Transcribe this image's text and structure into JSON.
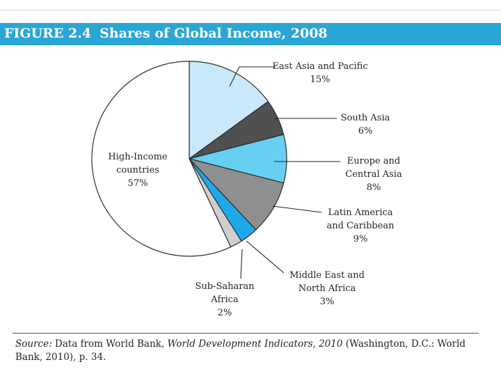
{
  "figure": {
    "number": "FIGURE 2.4",
    "title": "Shares of Global Income, 2008"
  },
  "chart_data": {
    "type": "pie",
    "title": "Shares of Global Income, 2008",
    "unit": "%",
    "slices": [
      {
        "key": "east-asia-pacific",
        "label_lines": [
          "East Asia and Pacific"
        ],
        "pct_label": "15%",
        "value": 15,
        "color": "#c9e9fa"
      },
      {
        "key": "south-asia",
        "label_lines": [
          "South Asia"
        ],
        "pct_label": "6%",
        "value": 6,
        "color": "#505050"
      },
      {
        "key": "europe-central-asia",
        "label_lines": [
          "Europe and",
          "Central Asia"
        ],
        "pct_label": "8%",
        "value": 8,
        "color": "#66cff2"
      },
      {
        "key": "latin-america-caribbean",
        "label_lines": [
          "Latin America",
          "and Caribbean"
        ],
        "pct_label": "9%",
        "value": 9,
        "color": "#8e8f91"
      },
      {
        "key": "middle-east-north-africa",
        "label_lines": [
          "Middle East and",
          "North Africa"
        ],
        "pct_label": "3%",
        "value": 3,
        "color": "#1eaaea"
      },
      {
        "key": "sub-saharan-africa",
        "label_lines": [
          "Sub-Saharan",
          "Africa"
        ],
        "pct_label": "2%",
        "value": 2,
        "color": "#cfcfcf"
      },
      {
        "key": "high-income-countries",
        "label_lines": [
          "High-Income",
          "countries"
        ],
        "pct_label": "57%",
        "value": 57,
        "color": "#ffffff"
      }
    ]
  },
  "source": {
    "prefix": "Source:",
    "text1": " Data from World Bank, ",
    "italic": "World Development Indicators, 2010",
    "text2": " (Washington, D.C.: World Bank, 2010), p. 34."
  }
}
